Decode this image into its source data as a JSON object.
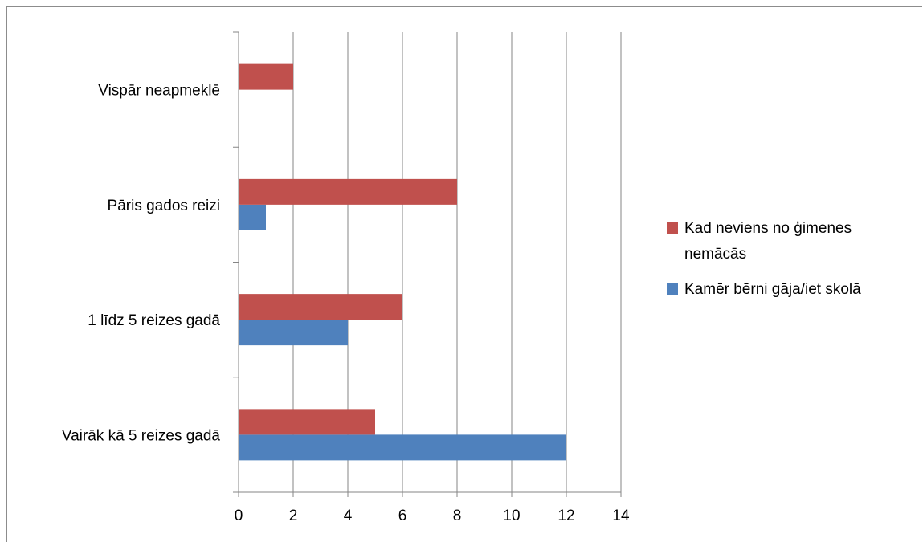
{
  "chart_data": {
    "type": "bar",
    "orientation": "horizontal",
    "categories": [
      "Vairāk kā 5 reizes gadā",
      "1 līdz 5 reizes gadā",
      "Pāris gados reizi",
      "Vispār neapmeklē"
    ],
    "series": [
      {
        "name": "Kamēr bērni gāja/iet skolā",
        "color": "#4f81bd",
        "values": [
          12,
          4,
          1,
          0
        ]
      },
      {
        "name": "Kad neviens no ģimenes nemācās",
        "color": "#c0504d",
        "values": [
          5,
          6,
          8,
          2
        ]
      }
    ],
    "x_ticks": [
      "0",
      "2",
      "4",
      "6",
      "8",
      "10",
      "12",
      "14"
    ],
    "xlim": [
      0,
      14
    ],
    "grid": "vertical",
    "legend_position": "right",
    "legend": [
      {
        "lines": [
          "Kad neviens no ģimenes",
          "nemācās"
        ],
        "color": "#c0504d"
      },
      {
        "lines": [
          "Kamēr bērni gāja/iet skolā"
        ],
        "color": "#4f81bd"
      }
    ]
  }
}
